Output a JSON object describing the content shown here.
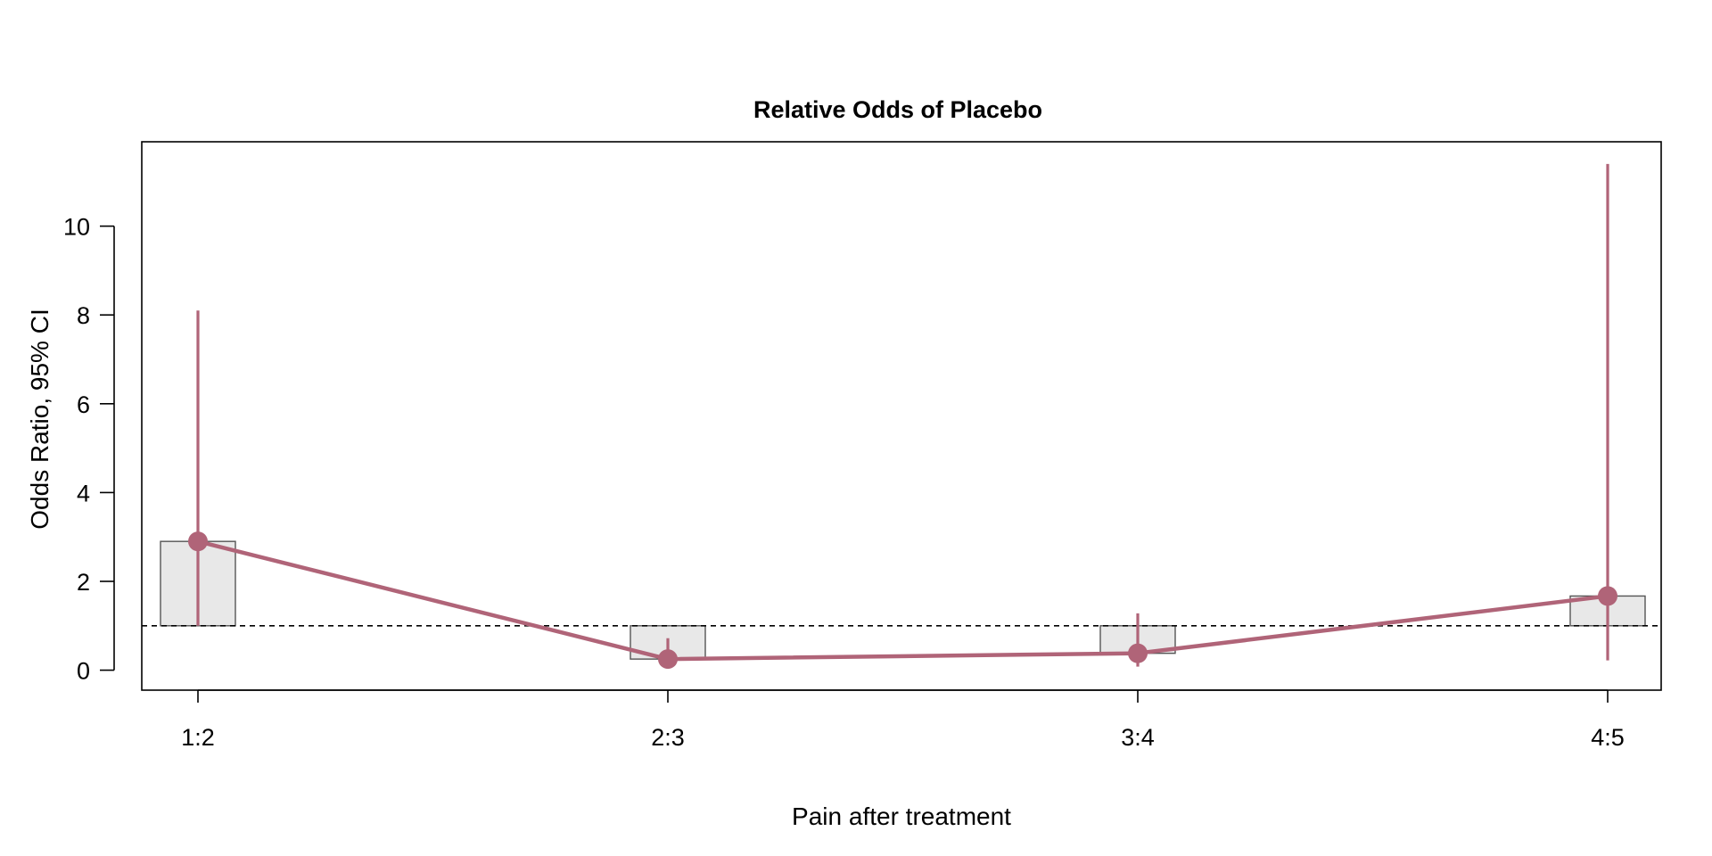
{
  "chart_data": {
    "type": "bar",
    "title": "Relative Odds of Placebo",
    "xlabel": "Pain after treatment",
    "ylabel": "Odds Ratio, 95% CI",
    "categories": [
      "1:2",
      "2:3",
      "3:4",
      "4:5"
    ],
    "baseline": 1,
    "ylim": [
      -0.45,
      11.9
    ],
    "yticks": [
      0,
      2,
      4,
      6,
      8,
      10
    ],
    "grid": false,
    "legend": "none",
    "series": [
      {
        "values": [
          2.9,
          0.25,
          0.38,
          1.67
        ],
        "ci_lower": [
          1.0,
          0.05,
          0.08,
          0.22
        ],
        "ci_upper": [
          8.1,
          0.72,
          1.28,
          11.4
        ]
      }
    ],
    "colors": {
      "line": "#b06478",
      "bar_fill": "#e8e8e8",
      "bar_stroke": "#555555",
      "reference_line": "#000000"
    }
  }
}
